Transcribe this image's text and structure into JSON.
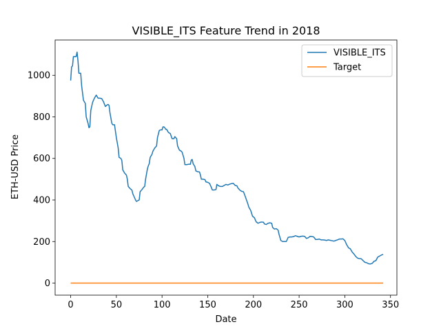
{
  "chart_data": {
    "type": "line",
    "title": "VISIBLE_ITS Feature Trend in 2018",
    "xlabel": "Date",
    "ylabel": "ETH-USD Price",
    "xlim": [
      -17,
      357
    ],
    "ylim": [
      -58,
      1170
    ],
    "xticks": [
      0,
      50,
      100,
      150,
      200,
      250,
      300,
      350
    ],
    "yticks": [
      0,
      200,
      400,
      600,
      800,
      1000
    ],
    "grid": false,
    "legend_position": "top-right",
    "series": [
      {
        "name": "VISIBLE_ITS",
        "color": "#1f77b4",
        "points": [
          [
            0,
            975
          ],
          [
            1,
            1040
          ],
          [
            2,
            1045
          ],
          [
            3,
            1090
          ],
          [
            6,
            1090
          ],
          [
            7,
            1112
          ],
          [
            8,
            1070
          ],
          [
            9,
            1010
          ],
          [
            11,
            1010
          ],
          [
            12,
            950
          ],
          [
            14,
            880
          ],
          [
            16,
            865
          ],
          [
            17,
            800
          ],
          [
            19,
            770
          ],
          [
            20,
            748
          ],
          [
            21,
            752
          ],
          [
            22,
            830
          ],
          [
            24,
            870
          ],
          [
            26,
            890
          ],
          [
            28,
            905
          ],
          [
            30,
            890
          ],
          [
            32,
            890
          ],
          [
            34,
            888
          ],
          [
            36,
            872
          ],
          [
            38,
            850
          ],
          [
            40,
            858
          ],
          [
            41,
            860
          ],
          [
            42,
            855
          ],
          [
            43,
            820
          ],
          [
            45,
            770
          ],
          [
            46,
            762
          ],
          [
            48,
            762
          ],
          [
            50,
            700
          ],
          [
            52,
            650
          ],
          [
            53,
            605
          ],
          [
            55,
            600
          ],
          [
            56,
            590
          ],
          [
            57,
            545
          ],
          [
            59,
            530
          ],
          [
            61,
            520
          ],
          [
            62,
            500
          ],
          [
            63,
            465
          ],
          [
            65,
            455
          ],
          [
            67,
            448
          ],
          [
            68,
            430
          ],
          [
            70,
            410
          ],
          [
            71,
            400
          ],
          [
            72,
            393
          ],
          [
            74,
            398
          ],
          [
            75,
            400
          ],
          [
            76,
            440
          ],
          [
            78,
            450
          ],
          [
            80,
            462
          ],
          [
            81,
            465
          ],
          [
            82,
            500
          ],
          [
            84,
            550
          ],
          [
            85,
            565
          ],
          [
            86,
            575
          ],
          [
            87,
            605
          ],
          [
            89,
            620
          ],
          [
            90,
            635
          ],
          [
            92,
            650
          ],
          [
            94,
            660
          ],
          [
            95,
            700
          ],
          [
            97,
            735
          ],
          [
            99,
            738
          ],
          [
            100,
            737
          ],
          [
            101,
            752
          ],
          [
            102,
            752
          ],
          [
            103,
            748
          ],
          [
            104,
            740
          ],
          [
            105,
            740
          ],
          [
            107,
            725
          ],
          [
            109,
            720
          ],
          [
            111,
            695
          ],
          [
            113,
            695
          ],
          [
            114,
            705
          ],
          [
            116,
            695
          ],
          [
            117,
            660
          ],
          [
            119,
            640
          ],
          [
            121,
            635
          ],
          [
            122,
            630
          ],
          [
            124,
            600
          ],
          [
            125,
            570
          ],
          [
            127,
            570
          ],
          [
            129,
            572
          ],
          [
            131,
            572
          ],
          [
            132,
            592
          ],
          [
            133,
            595
          ],
          [
            134,
            575
          ],
          [
            136,
            560
          ],
          [
            137,
            540
          ],
          [
            139,
            536
          ],
          [
            141,
            535
          ],
          [
            142,
            520
          ],
          [
            143,
            500
          ],
          [
            145,
            500
          ],
          [
            147,
            498
          ],
          [
            148,
            487
          ],
          [
            150,
            485
          ],
          [
            152,
            480
          ],
          [
            154,
            460
          ],
          [
            155,
            448
          ],
          [
            157,
            448
          ],
          [
            159,
            450
          ],
          [
            160,
            475
          ],
          [
            162,
            468
          ],
          [
            164,
            465
          ],
          [
            166,
            465
          ],
          [
            168,
            470
          ],
          [
            170,
            475
          ],
          [
            172,
            472
          ],
          [
            174,
            476
          ],
          [
            176,
            479
          ],
          [
            178,
            480
          ],
          [
            180,
            470
          ],
          [
            182,
            468
          ],
          [
            183,
            458
          ],
          [
            185,
            448
          ],
          [
            187,
            442
          ],
          [
            189,
            440
          ],
          [
            190,
            430
          ],
          [
            192,
            405
          ],
          [
            194,
            380
          ],
          [
            195,
            365
          ],
          [
            197,
            350
          ],
          [
            199,
            322
          ],
          [
            201,
            315
          ],
          [
            203,
            295
          ],
          [
            205,
            288
          ],
          [
            207,
            292
          ],
          [
            209,
            294
          ],
          [
            211,
            293
          ],
          [
            212,
            285
          ],
          [
            214,
            282
          ],
          [
            216,
            288
          ],
          [
            218,
            290
          ],
          [
            220,
            288
          ],
          [
            221,
            268
          ],
          [
            223,
            260
          ],
          [
            225,
            262
          ],
          [
            227,
            255
          ],
          [
            228,
            235
          ],
          [
            230,
            205
          ],
          [
            232,
            200
          ],
          [
            234,
            200
          ],
          [
            236,
            200
          ],
          [
            238,
            220
          ],
          [
            240,
            222
          ],
          [
            242,
            222
          ],
          [
            244,
            224
          ],
          [
            246,
            228
          ],
          [
            248,
            225
          ],
          [
            250,
            222
          ],
          [
            252,
            225
          ],
          [
            254,
            226
          ],
          [
            256,
            225
          ],
          [
            258,
            215
          ],
          [
            260,
            218
          ],
          [
            262,
            225
          ],
          [
            264,
            224
          ],
          [
            266,
            222
          ],
          [
            268,
            210
          ],
          [
            270,
            210
          ],
          [
            272,
            212
          ],
          [
            274,
            208
          ],
          [
            276,
            208
          ],
          [
            278,
            207
          ],
          [
            280,
            205
          ],
          [
            282,
            208
          ],
          [
            284,
            206
          ],
          [
            286,
            204
          ],
          [
            288,
            202
          ],
          [
            290,
            205
          ],
          [
            292,
            208
          ],
          [
            294,
            212
          ],
          [
            296,
            212
          ],
          [
            298,
            213
          ],
          [
            300,
            205
          ],
          [
            302,
            185
          ],
          [
            304,
            170
          ],
          [
            306,
            165
          ],
          [
            308,
            150
          ],
          [
            310,
            140
          ],
          [
            312,
            128
          ],
          [
            314,
            120
          ],
          [
            316,
            118
          ],
          [
            318,
            117
          ],
          [
            320,
            108
          ],
          [
            322,
            100
          ],
          [
            324,
            98
          ],
          [
            326,
            93
          ],
          [
            328,
            92
          ],
          [
            330,
            95
          ],
          [
            332,
            105
          ],
          [
            334,
            108
          ],
          [
            336,
            125
          ],
          [
            338,
            130
          ],
          [
            340,
            135
          ],
          [
            342,
            138
          ]
        ]
      },
      {
        "name": "Target",
        "color": "#ff7f0e",
        "points": [
          [
            0,
            0
          ],
          [
            342,
            0
          ]
        ]
      }
    ]
  }
}
